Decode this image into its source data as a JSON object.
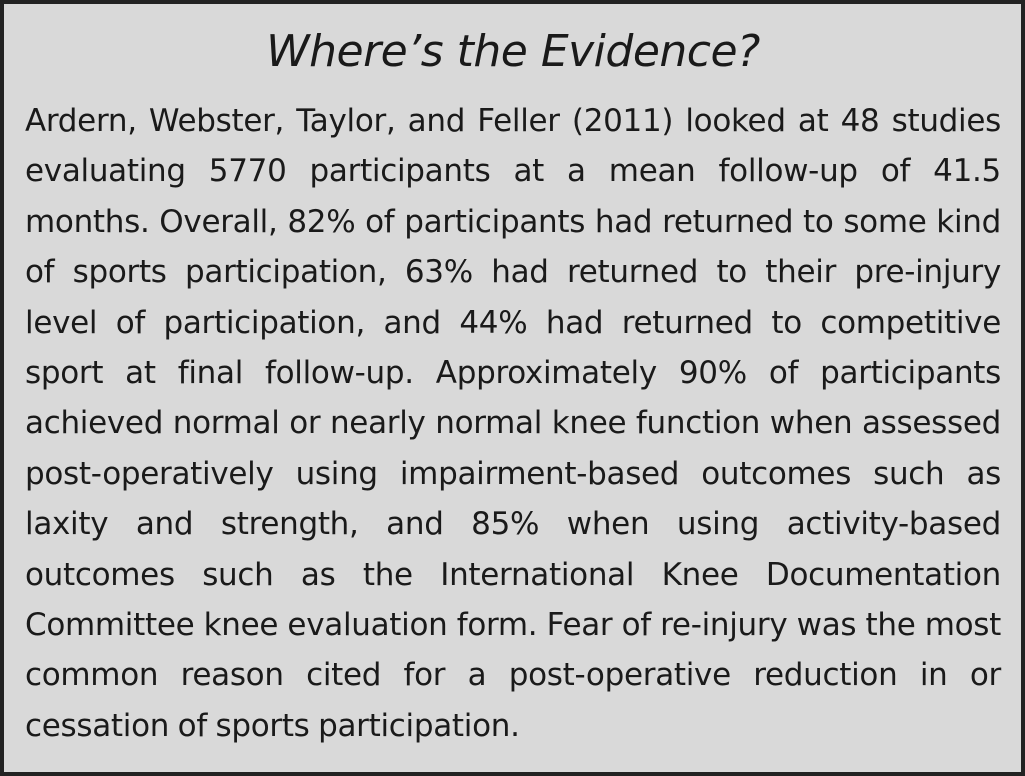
{
  "box": {
    "title": "Where’s the Evidence?",
    "paragraph": "Ardern, Webster, Taylor, and Feller (2011) looked at 48 stud­ies evaluating 5770 participants at a mean follow-up of 41.5 months. Overall, 82% of participants had returned to some kind of sports participation, 63% had returned to their pre-injury level of participation, and 44% had returned to com­petitive sport at final follow-up. Approximately 90% of par­ticipants achieved normal or nearly normal knee function when assessed post-operatively using impairment-based outcomes such as laxity and strength, and 85% when using activity-based outcomes such as the International Knee Documentation Committee knee evaluation form. Fear of re-injury was the most common reason cited for a post-operative reduction in or cessation of sports participation."
  },
  "colors": {
    "background": "#d9d9d9",
    "border": "#222222",
    "text": "#1a1a1a"
  }
}
